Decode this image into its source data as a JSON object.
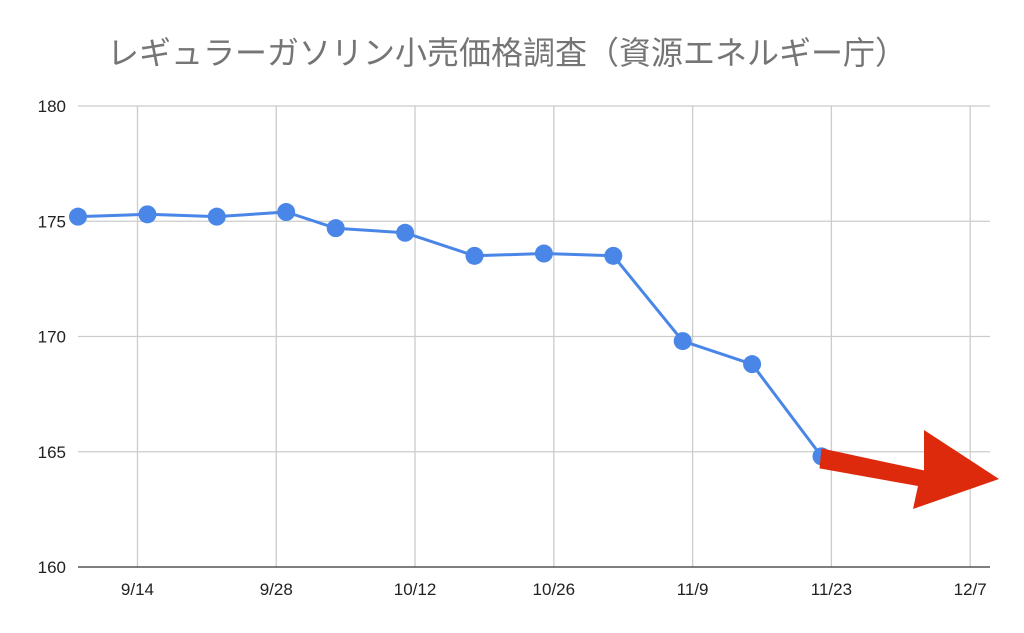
{
  "chart_data": {
    "type": "line",
    "title": "レギュラーガソリン小売価格調査（資源エネルギー庁）",
    "xlabel": "",
    "ylabel": "",
    "x_tick_labels": [
      "9/14",
      "9/28",
      "10/12",
      "10/26",
      "11/9",
      "11/23",
      "12/7"
    ],
    "x_tick_dates": [
      "2021-09-14",
      "2021-09-28",
      "2021-10-12",
      "2021-10-26",
      "2021-11-09",
      "2021-11-23",
      "2021-12-07"
    ],
    "xlim": [
      "2021-09-08",
      "2021-12-09"
    ],
    "y_ticks": [
      160,
      165,
      170,
      175,
      180
    ],
    "ylim": [
      160,
      180
    ],
    "grid": true,
    "legend": "none",
    "series": [
      {
        "color": "#4a86e8",
        "x": [
          "2021-09-08",
          "2021-09-15",
          "2021-09-22",
          "2021-09-29",
          "2021-10-04",
          "2021-10-11",
          "2021-10-18",
          "2021-10-25",
          "2021-11-01",
          "2021-11-08",
          "2021-11-15",
          "2021-11-22"
        ],
        "values": [
          175.2,
          175.3,
          175.2,
          175.4,
          174.7,
          174.5,
          173.5,
          173.6,
          173.5,
          169.8,
          168.8,
          164.8
        ]
      }
    ],
    "annotation": {
      "type": "arrow",
      "color": "#dd2a0c",
      "meaning": "downward trend continues"
    }
  }
}
